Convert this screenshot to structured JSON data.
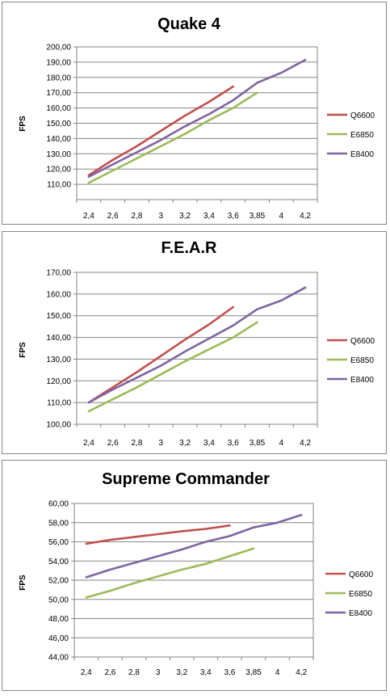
{
  "chart_data": [
    {
      "type": "line",
      "title": "Quake 4",
      "ylabel": "FPS",
      "xlabel": "",
      "categories": [
        "2,4",
        "2,6",
        "2,8",
        "3",
        "3,2",
        "3,4",
        "3,6",
        "3,85",
        "4",
        "4,2"
      ],
      "ylim": [
        100,
        200
      ],
      "yticks": [
        "110,00",
        "120,00",
        "130,00",
        "140,00",
        "150,00",
        "160,00",
        "170,00",
        "180,00",
        "190,00",
        "200,00"
      ],
      "grid": true,
      "legend": "right",
      "series": [
        {
          "name": "Q6600",
          "color": "#C0504D",
          "values": [
            116,
            126,
            135,
            145,
            155,
            164,
            174,
            null,
            null,
            null
          ]
        },
        {
          "name": "E6850",
          "color": "#9BBB59",
          "values": [
            111,
            119,
            127,
            135,
            143,
            152,
            160,
            170,
            null,
            null
          ]
        },
        {
          "name": "E8400",
          "color": "#8064A2",
          "values": [
            115,
            123,
            131,
            139,
            148,
            156,
            165,
            176.5,
            183,
            191.5
          ]
        }
      ]
    },
    {
      "type": "line",
      "title": "F.E.A.R",
      "ylabel": "FPS",
      "xlabel": "",
      "categories": [
        "2,4",
        "2,6",
        "2,8",
        "3",
        "3,2",
        "3,4",
        "3,6",
        "3,85",
        "4",
        "4,2"
      ],
      "ylim": [
        100,
        170
      ],
      "yticks": [
        "100,00",
        "110,00",
        "120,00",
        "130,00",
        "140,00",
        "150,00",
        "160,00",
        "170,00"
      ],
      "grid": true,
      "legend": "right",
      "series": [
        {
          "name": "Q6600",
          "color": "#C0504D",
          "values": [
            110,
            117,
            124,
            131.5,
            139,
            146,
            154,
            null,
            null,
            null
          ]
        },
        {
          "name": "E6850",
          "color": "#9BBB59",
          "values": [
            106,
            111.5,
            117,
            123,
            129,
            134.5,
            140,
            147,
            null,
            null
          ]
        },
        {
          "name": "E8400",
          "color": "#8064A2",
          "values": [
            110,
            116,
            121.5,
            127,
            133.5,
            139.5,
            145.5,
            153,
            157,
            163
          ]
        }
      ]
    },
    {
      "type": "line",
      "title": "Supreme Commander",
      "ylabel": "FPS",
      "xlabel": "",
      "categories": [
        "2,4",
        "2,6",
        "2,8",
        "3",
        "3,2",
        "3,4",
        "3,6",
        "3,85",
        "4",
        "4,2"
      ],
      "ylim": [
        44,
        60
      ],
      "yticks": [
        "44,00",
        "46,00",
        "48,00",
        "50,00",
        "52,00",
        "54,00",
        "56,00",
        "58,00",
        "60,00"
      ],
      "grid": true,
      "legend": "right",
      "series": [
        {
          "name": "Q6600",
          "color": "#C0504D",
          "values": [
            55.8,
            56.2,
            56.5,
            56.8,
            57.1,
            57.35,
            57.7,
            null,
            null,
            null
          ]
        },
        {
          "name": "E6850",
          "color": "#9BBB59",
          "values": [
            50.2,
            50.9,
            51.7,
            52.4,
            53.1,
            53.7,
            54.5,
            55.3,
            null,
            null
          ]
        },
        {
          "name": "E8400",
          "color": "#8064A2",
          "values": [
            52.3,
            53.1,
            53.8,
            54.5,
            55.2,
            56.0,
            56.6,
            57.5,
            58.0,
            58.8
          ]
        }
      ]
    }
  ]
}
